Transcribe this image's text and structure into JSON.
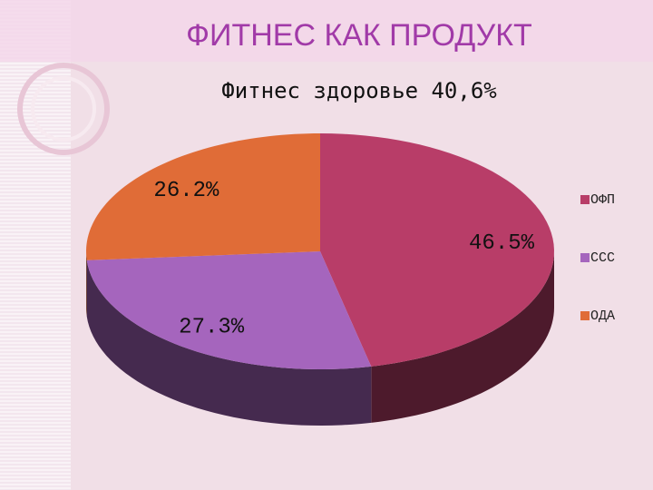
{
  "header": {
    "title": "ФИТНЕС КАК ПРОДУКТ"
  },
  "chart_data": {
    "type": "pie3d",
    "title": "Фитнес здоровье 40,6%",
    "categories": [
      "ОФП",
      "ССС",
      "ОДА"
    ],
    "values": [
      46.5,
      27.3,
      26.2
    ],
    "value_labels": [
      "46.5%",
      "27.3%",
      "26.2%"
    ],
    "colors": [
      "#b83d68",
      "#a565bd",
      "#e06c37"
    ],
    "legend": "right"
  }
}
